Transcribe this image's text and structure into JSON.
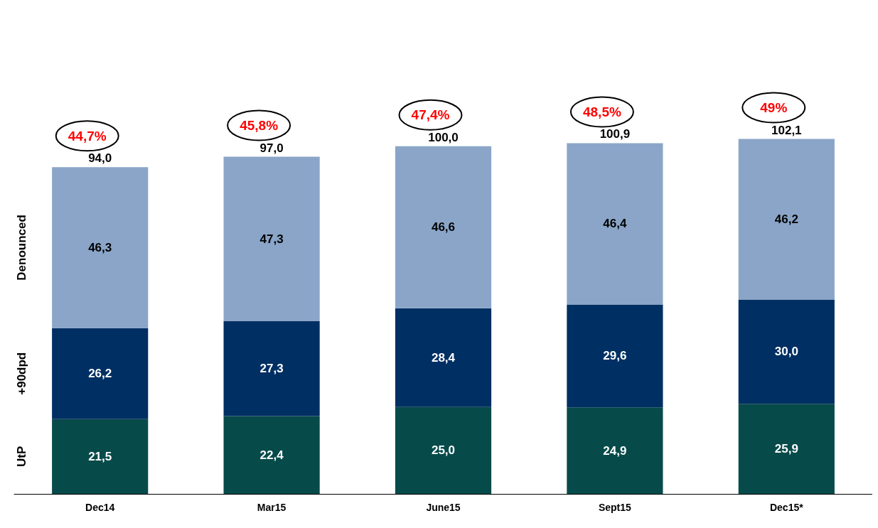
{
  "chart_data": {
    "type": "bar",
    "stacked": true,
    "categories": [
      "Dec14",
      "Mar15",
      "June15",
      "Sept15",
      "Dec15*"
    ],
    "series": [
      {
        "name": "UtP",
        "color": "#074a4a",
        "values": [
          21.5,
          22.4,
          25.0,
          24.9,
          25.9
        ],
        "value_labels": [
          "21,5",
          "22,4",
          "25,0",
          "24,9",
          "25,9"
        ]
      },
      {
        "name": "+90dpd",
        "color": "#002f63",
        "values": [
          26.2,
          27.3,
          28.4,
          29.6,
          30.0
        ],
        "value_labels": [
          "26,2",
          "27,3",
          "28,4",
          "29,6",
          "30,0"
        ]
      },
      {
        "name": "Denounced",
        "color": "#8aa5c8",
        "values": [
          46.3,
          47.3,
          46.6,
          46.4,
          46.2
        ],
        "value_labels": [
          "46,3",
          "47,3",
          "46,6",
          "46,4",
          "46,2"
        ]
      }
    ],
    "totals": [
      "94,0",
      "97,0",
      "100,0",
      "100,9",
      "102,1"
    ],
    "annotations": [
      "44,7%",
      "45,8%",
      "47,4%",
      "48,5%",
      "49%"
    ],
    "legend": false
  }
}
